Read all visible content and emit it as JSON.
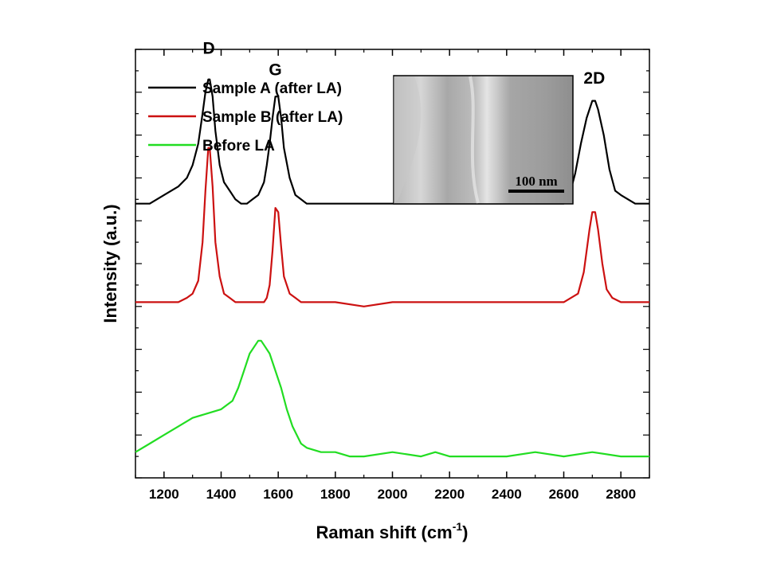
{
  "chart_data": {
    "type": "line",
    "xlabel": "Raman shift (cm",
    "xlabel_sup": "-1",
    "xlabel_end": ")",
    "ylabel": "Intensity (a.u.)",
    "xlim": [
      1100,
      2900
    ],
    "ylim": [
      0,
      100
    ],
    "x_ticks": [
      1200,
      1400,
      1600,
      1800,
      2000,
      2200,
      2400,
      2600,
      2800
    ],
    "legend_position": "top-left",
    "series": [
      {
        "name": "Sample A (after LA)",
        "color": "#000000",
        "x": [
          1100,
          1150,
          1200,
          1250,
          1280,
          1300,
          1320,
          1335,
          1345,
          1355,
          1360,
          1370,
          1380,
          1395,
          1410,
          1430,
          1450,
          1470,
          1490,
          1510,
          1530,
          1550,
          1560,
          1570,
          1580,
          1590,
          1600,
          1610,
          1620,
          1640,
          1660,
          1680,
          1700,
          1750,
          1800,
          1850,
          1900,
          2000,
          2100,
          2200,
          2300,
          2400,
          2500,
          2550,
          2600,
          2620,
          2640,
          2660,
          2680,
          2700,
          2710,
          2720,
          2740,
          2760,
          2780,
          2800,
          2850,
          2900
        ],
        "y": [
          64,
          64,
          66,
          68,
          70,
          73,
          78,
          85,
          90,
          93,
          93,
          89,
          81,
          73,
          69,
          67,
          65,
          64,
          64,
          65,
          66,
          69,
          73,
          78,
          84,
          89,
          89,
          84,
          77,
          70,
          66,
          65,
          64,
          64,
          64,
          64,
          64,
          64,
          64,
          64,
          64,
          64,
          64,
          64,
          64,
          66,
          71,
          78,
          84,
          88,
          88,
          86,
          80,
          72,
          67,
          66,
          64,
          64
        ]
      },
      {
        "name": "Sample B (after LA)",
        "color": "#cc1111",
        "x": [
          1100,
          1150,
          1200,
          1250,
          1280,
          1300,
          1320,
          1335,
          1345,
          1355,
          1360,
          1370,
          1380,
          1395,
          1410,
          1430,
          1450,
          1480,
          1500,
          1520,
          1540,
          1550,
          1560,
          1570,
          1580,
          1590,
          1600,
          1610,
          1620,
          1640,
          1660,
          1680,
          1700,
          1800,
          1900,
          2000,
          2100,
          2200,
          2300,
          2400,
          2500,
          2600,
          2650,
          2670,
          2690,
          2700,
          2710,
          2720,
          2735,
          2750,
          2770,
          2800,
          2850,
          2900
        ],
        "y": [
          41,
          41,
          41,
          41,
          42,
          43,
          46,
          55,
          67,
          77,
          77,
          68,
          55,
          47,
          43,
          42,
          41,
          41,
          41,
          41,
          41,
          41,
          42,
          45,
          53,
          63,
          62,
          54,
          47,
          43,
          42,
          41,
          41,
          41,
          40,
          41,
          41,
          41,
          41,
          41,
          41,
          41,
          43,
          48,
          58,
          62,
          62,
          58,
          50,
          44,
          42,
          41,
          41,
          41
        ]
      },
      {
        "name": "Before LA",
        "color": "#22dd22",
        "x": [
          1100,
          1150,
          1200,
          1250,
          1300,
          1350,
          1400,
          1420,
          1440,
          1460,
          1480,
          1500,
          1520,
          1530,
          1540,
          1550,
          1570,
          1590,
          1610,
          1630,
          1650,
          1680,
          1700,
          1750,
          1800,
          1850,
          1900,
          2000,
          2100,
          2150,
          2200,
          2300,
          2400,
          2500,
          2600,
          2700,
          2800,
          2900
        ],
        "y": [
          6,
          8,
          10,
          12,
          14,
          15,
          16,
          17,
          18,
          21,
          25,
          29,
          31,
          32,
          32,
          31,
          29,
          25,
          21,
          16,
          12,
          8,
          7,
          6,
          6,
          5,
          5,
          6,
          5,
          6,
          5,
          5,
          5,
          6,
          5,
          6,
          5,
          5
        ]
      }
    ],
    "annotations": [
      {
        "text": "D",
        "x": 1357,
        "y": 99
      },
      {
        "text": "G",
        "x": 1590,
        "y": 94
      },
      {
        "text": "2D",
        "x": 2707,
        "y": 92
      }
    ]
  },
  "inset": {
    "scale_label": "100 nm"
  }
}
